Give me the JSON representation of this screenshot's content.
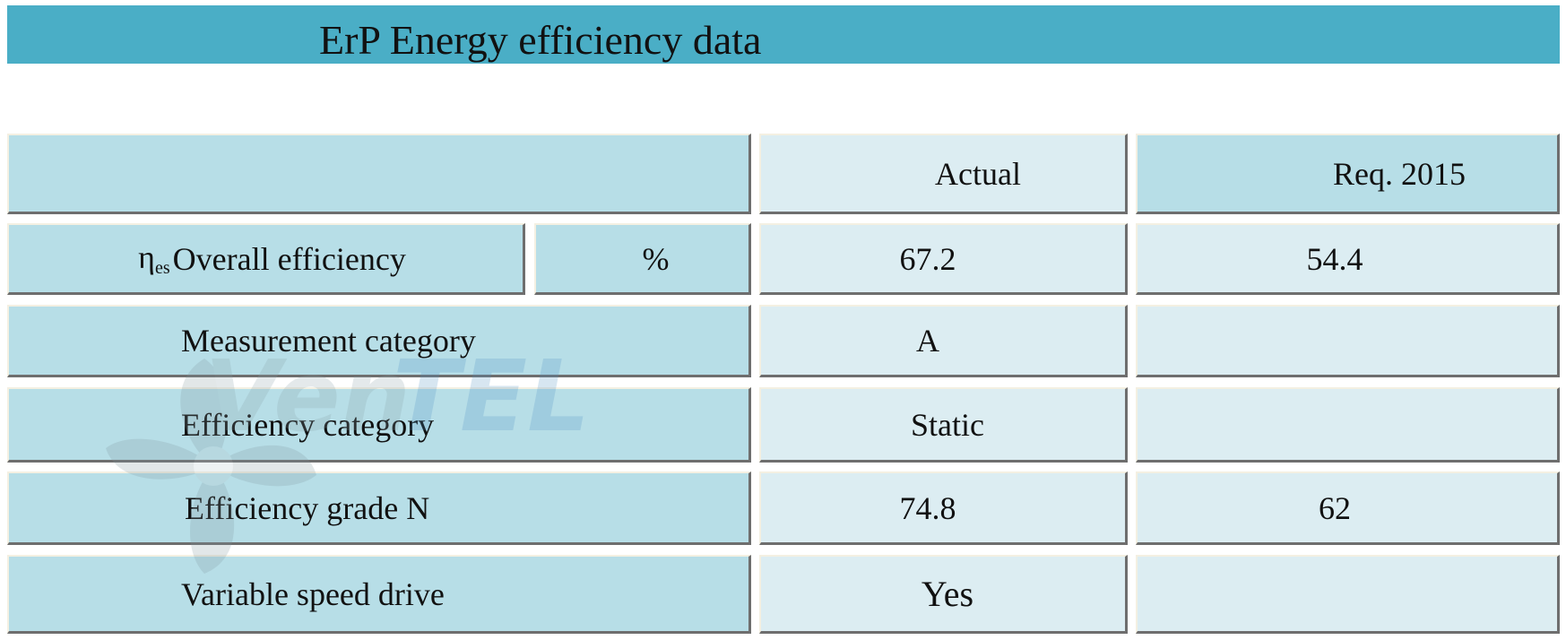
{
  "title": "ErP Energy efficiency data",
  "header": {
    "col_blank": "",
    "actual": "Actual",
    "req": "Req. 2015"
  },
  "rows": [
    {
      "label_symbol": "η",
      "label_sub": "es",
      "label": "Overall efficiency",
      "unit": "%",
      "actual": "67.2",
      "req": "54.4"
    },
    {
      "label": "Measurement category",
      "actual": "A",
      "req": ""
    },
    {
      "label": "Efficiency category",
      "actual": "Static",
      "req": ""
    },
    {
      "label": "Efficiency grade N",
      "actual": "74.8",
      "req": "62"
    },
    {
      "label": "Variable speed drive",
      "actual": "Yes",
      "req": ""
    }
  ],
  "watermark": {
    "text_main": "Ven",
    "text_accent": "TEL",
    "icon": "fan-logo-icon"
  },
  "colors": {
    "title_bar": "#4aaec6",
    "label_cell": "#b7dee7",
    "value_cell": "#dcedf2"
  }
}
